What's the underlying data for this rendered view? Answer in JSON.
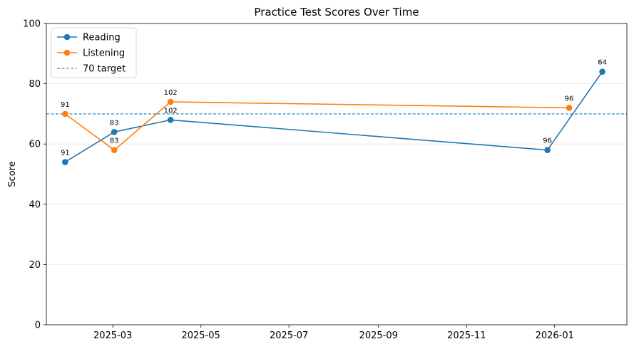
{
  "chart_data": {
    "type": "line",
    "title": "Practice Test Scores Over Time",
    "xlabel": "",
    "ylabel": "Score",
    "ylim": [
      0,
      100
    ],
    "xlim": [
      "2025-01-14",
      "2026-02-20"
    ],
    "yticks": [
      0,
      20,
      40,
      60,
      80,
      100
    ],
    "xticks": [
      "2025-03",
      "2025-05",
      "2025-07",
      "2025-09",
      "2025-11",
      "2026-01"
    ],
    "grid": "y",
    "legend_position": "top-left",
    "series": [
      {
        "name": "Reading",
        "color": "#1f77b4",
        "points": [
          {
            "x": "2025-01-27",
            "y": 54,
            "label": "91"
          },
          {
            "x": "2025-03-02",
            "y": 64,
            "label": "83"
          },
          {
            "x": "2025-04-10",
            "y": 68,
            "label": "102"
          },
          {
            "x": "2025-12-27",
            "y": 58,
            "label": "96"
          },
          {
            "x": "2026-02-03",
            "y": 84,
            "label": "64"
          }
        ]
      },
      {
        "name": "Listening",
        "color": "#ff7f0e",
        "points": [
          {
            "x": "2025-01-27",
            "y": 70,
            "label": "91"
          },
          {
            "x": "2025-03-02",
            "y": 58,
            "label": "83"
          },
          {
            "x": "2025-04-10",
            "y": 74,
            "label": "102"
          },
          {
            "x": "2026-01-11",
            "y": 72,
            "label": "96"
          }
        ]
      }
    ],
    "reference_line": {
      "name": "70 target",
      "y": 70,
      "color": "#1f77b4",
      "style": "dashed"
    }
  }
}
